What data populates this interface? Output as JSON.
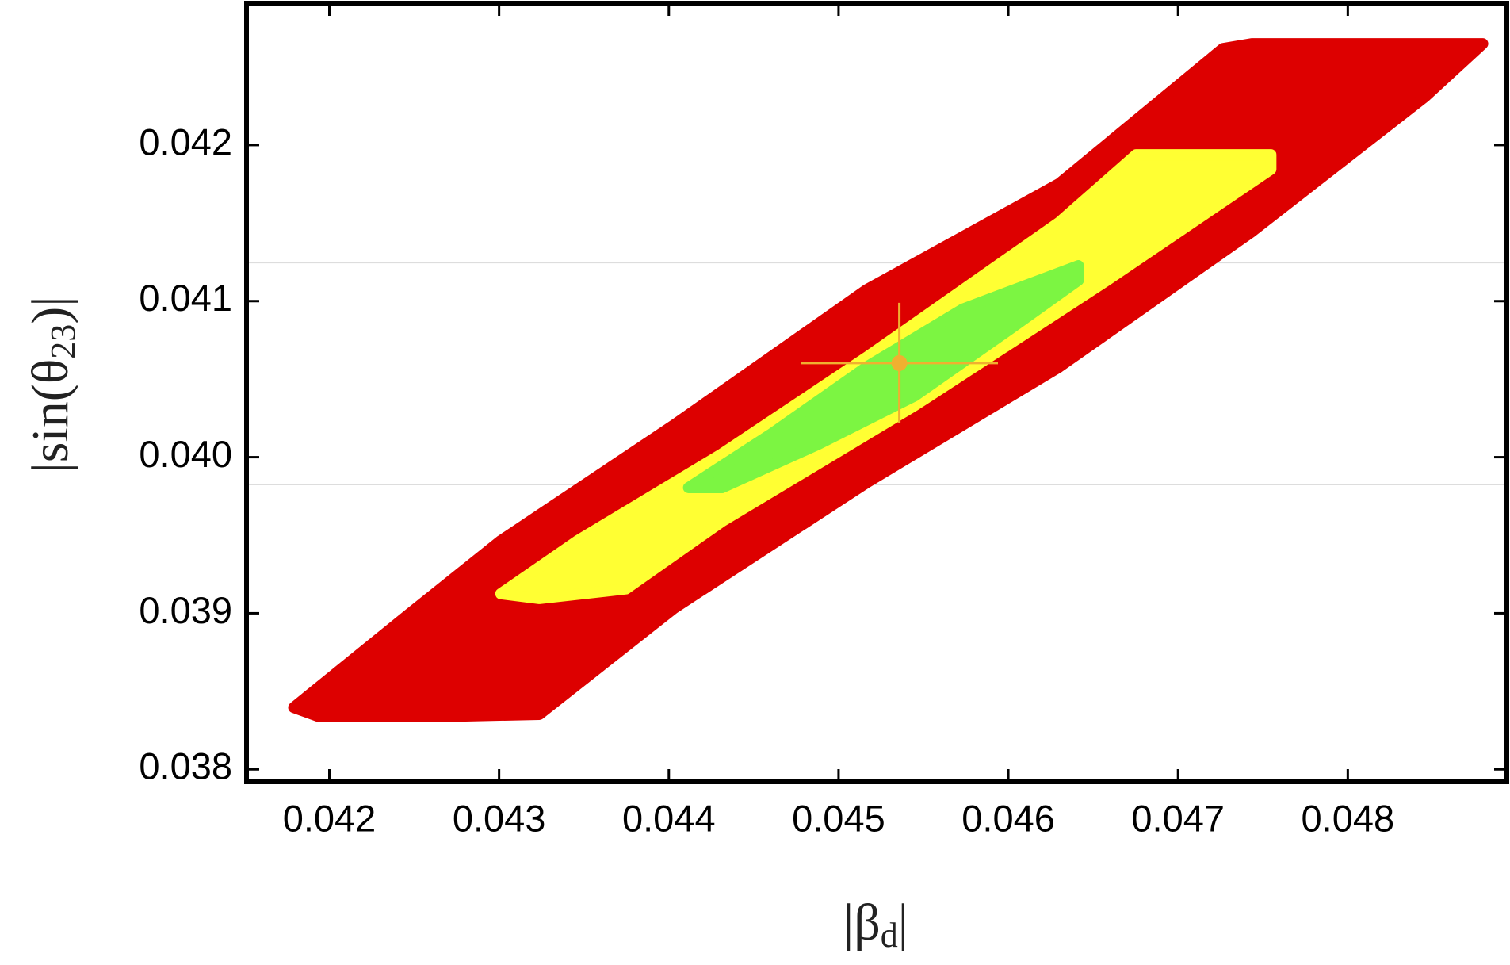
{
  "chart_data": {
    "type": "scatter",
    "xlabel": [
      "|β",
      "d",
      "|"
    ],
    "ylabel": [
      "|sin(θ",
      "23",
      ")|"
    ],
    "xlim": [
      0.041512,
      0.048937
    ],
    "ylim": [
      0.03792,
      0.042909
    ],
    "xticks": [
      0.042,
      0.043,
      0.044,
      0.045,
      0.046,
      0.047,
      0.048
    ],
    "yticks": [
      0.038,
      0.039,
      {
        "value": 0.04,
        "label": "0.040"
      },
      0.041,
      0.042
    ],
    "hlines": [
      0.041246,
      0.039824
    ],
    "series": [
      {
        "color": "#dd0000",
        "x": [
          0.04179,
          0.042442,
          0.04301,
          0.044031,
          0.045165,
          0.0463,
          0.047264,
          0.047434,
          0.048795,
          0.048455,
          0.047434,
          0.0463,
          0.045165,
          0.044031,
          0.043237,
          0.042726,
          0.041932
        ],
        "y": [
          0.038396,
          0.038971,
          0.039465,
          0.040207,
          0.041073,
          0.041753,
          0.042618,
          0.042649,
          0.042649,
          0.042309,
          0.041444,
          0.040578,
          0.039836,
          0.039032,
          0.038352,
          0.03834,
          0.03834
        ]
      },
      {
        "color": "#ffff33",
        "x": [
          0.04301,
          0.043463,
          0.044314,
          0.045165,
          0.0463,
          0.046753,
          0.047547,
          0.047547,
          0.046583,
          0.045449,
          0.044314,
          0.043747,
          0.043237
        ],
        "y": [
          0.039125,
          0.039465,
          0.040022,
          0.04064,
          0.041505,
          0.041938,
          0.041938,
          0.041845,
          0.041134,
          0.040331,
          0.039589,
          0.039156,
          0.039094
        ]
      },
      {
        "color": "#7cf542",
        "x": [
          0.044116,
          0.044598,
          0.045165,
          0.045732,
          0.046413,
          0.046413,
          0.046016,
          0.045449,
          0.044881,
          0.044314
        ],
        "y": [
          0.039805,
          0.040145,
          0.040578,
          0.040949,
          0.041227,
          0.041134,
          0.040825,
          0.040393,
          0.040083,
          0.039805
        ]
      }
    ],
    "point": {
      "x": 0.045358,
      "y": 0.040603,
      "xerr": 0.000581,
      "yerr": 0.000386,
      "color": "#f0b030"
    }
  }
}
